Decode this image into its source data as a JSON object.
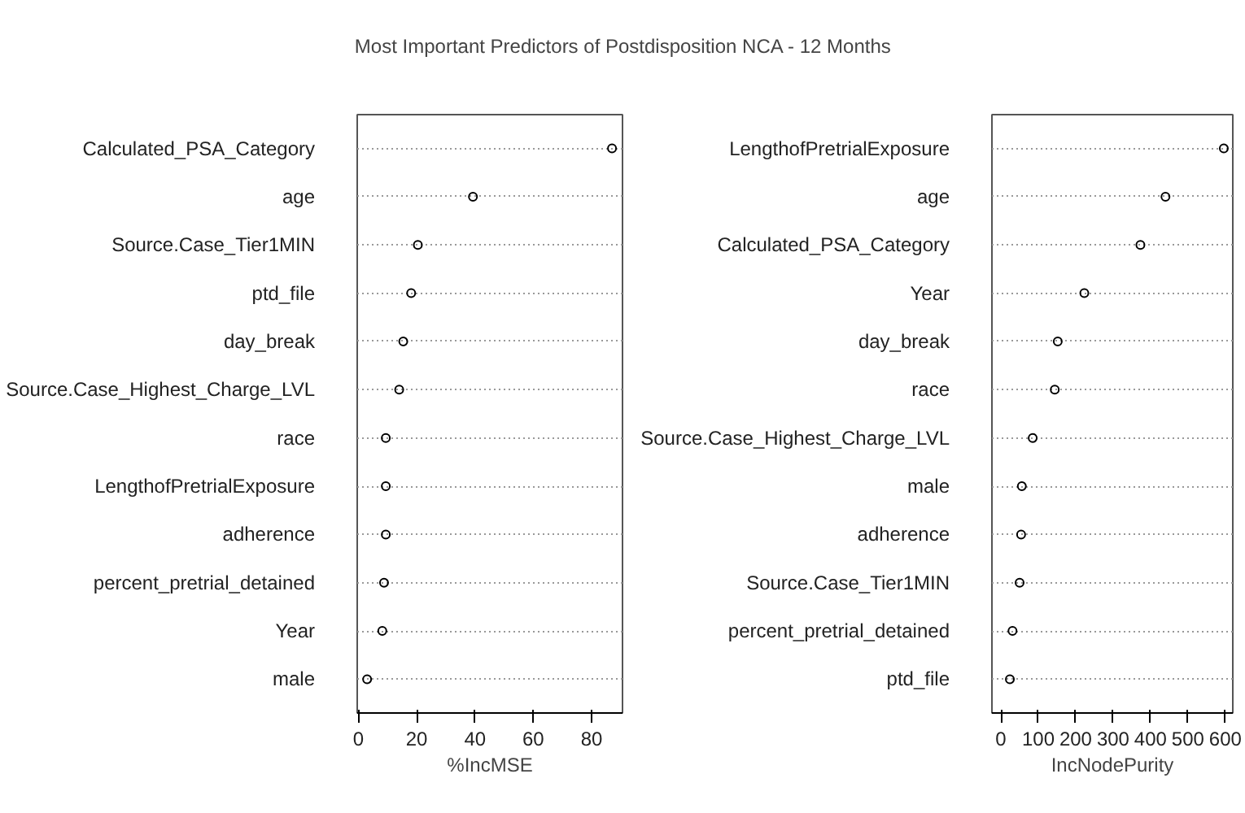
{
  "chart_data": [
    {
      "type": "scatter",
      "title": "Most Important Predictors of Postdisposition NCA - 12 Months",
      "orientation": "horizontal",
      "xlabel": "%IncMSE",
      "categories": [
        "Calculated_PSA_Category",
        "age",
        "Source.Case_Tier1MIN",
        "ptd_file",
        "day_break",
        "Source.Case_Highest_Charge_LVL",
        "race",
        "LengthofPretrialExposure",
        "adherence",
        "percent_pretrial_detained",
        "Year",
        "male"
      ],
      "values": [
        87.0,
        39.3,
        20.4,
        18.1,
        15.4,
        14.0,
        9.4,
        9.4,
        9.4,
        8.8,
        8.2,
        3.0
      ],
      "color": "#000000",
      "marker": "circle",
      "grid": "y",
      "xlim": [
        -0.4,
        90.6
      ],
      "xticks": [
        0,
        20,
        40,
        60,
        80
      ]
    },
    {
      "type": "scatter",
      "orientation": "horizontal",
      "xlabel": "IncNodePurity",
      "categories": [
        "LengthofPretrialExposure",
        "age",
        "Calculated_PSA_Category",
        "Year",
        "day_break",
        "race",
        "Source.Case_Highest_Charge_LVL",
        "male",
        "adherence",
        "Source.Case_Tier1MIN",
        "percent_pretrial_detained",
        "ptd_file"
      ],
      "values": [
        596,
        440,
        373,
        223,
        152,
        144,
        85,
        56,
        54,
        50,
        31,
        24
      ],
      "color": "#000000",
      "marker": "circle",
      "grid": "y",
      "xlim": [
        -24,
        620
      ],
      "xticks": [
        0,
        100,
        200,
        300,
        400,
        500,
        600
      ]
    }
  ]
}
